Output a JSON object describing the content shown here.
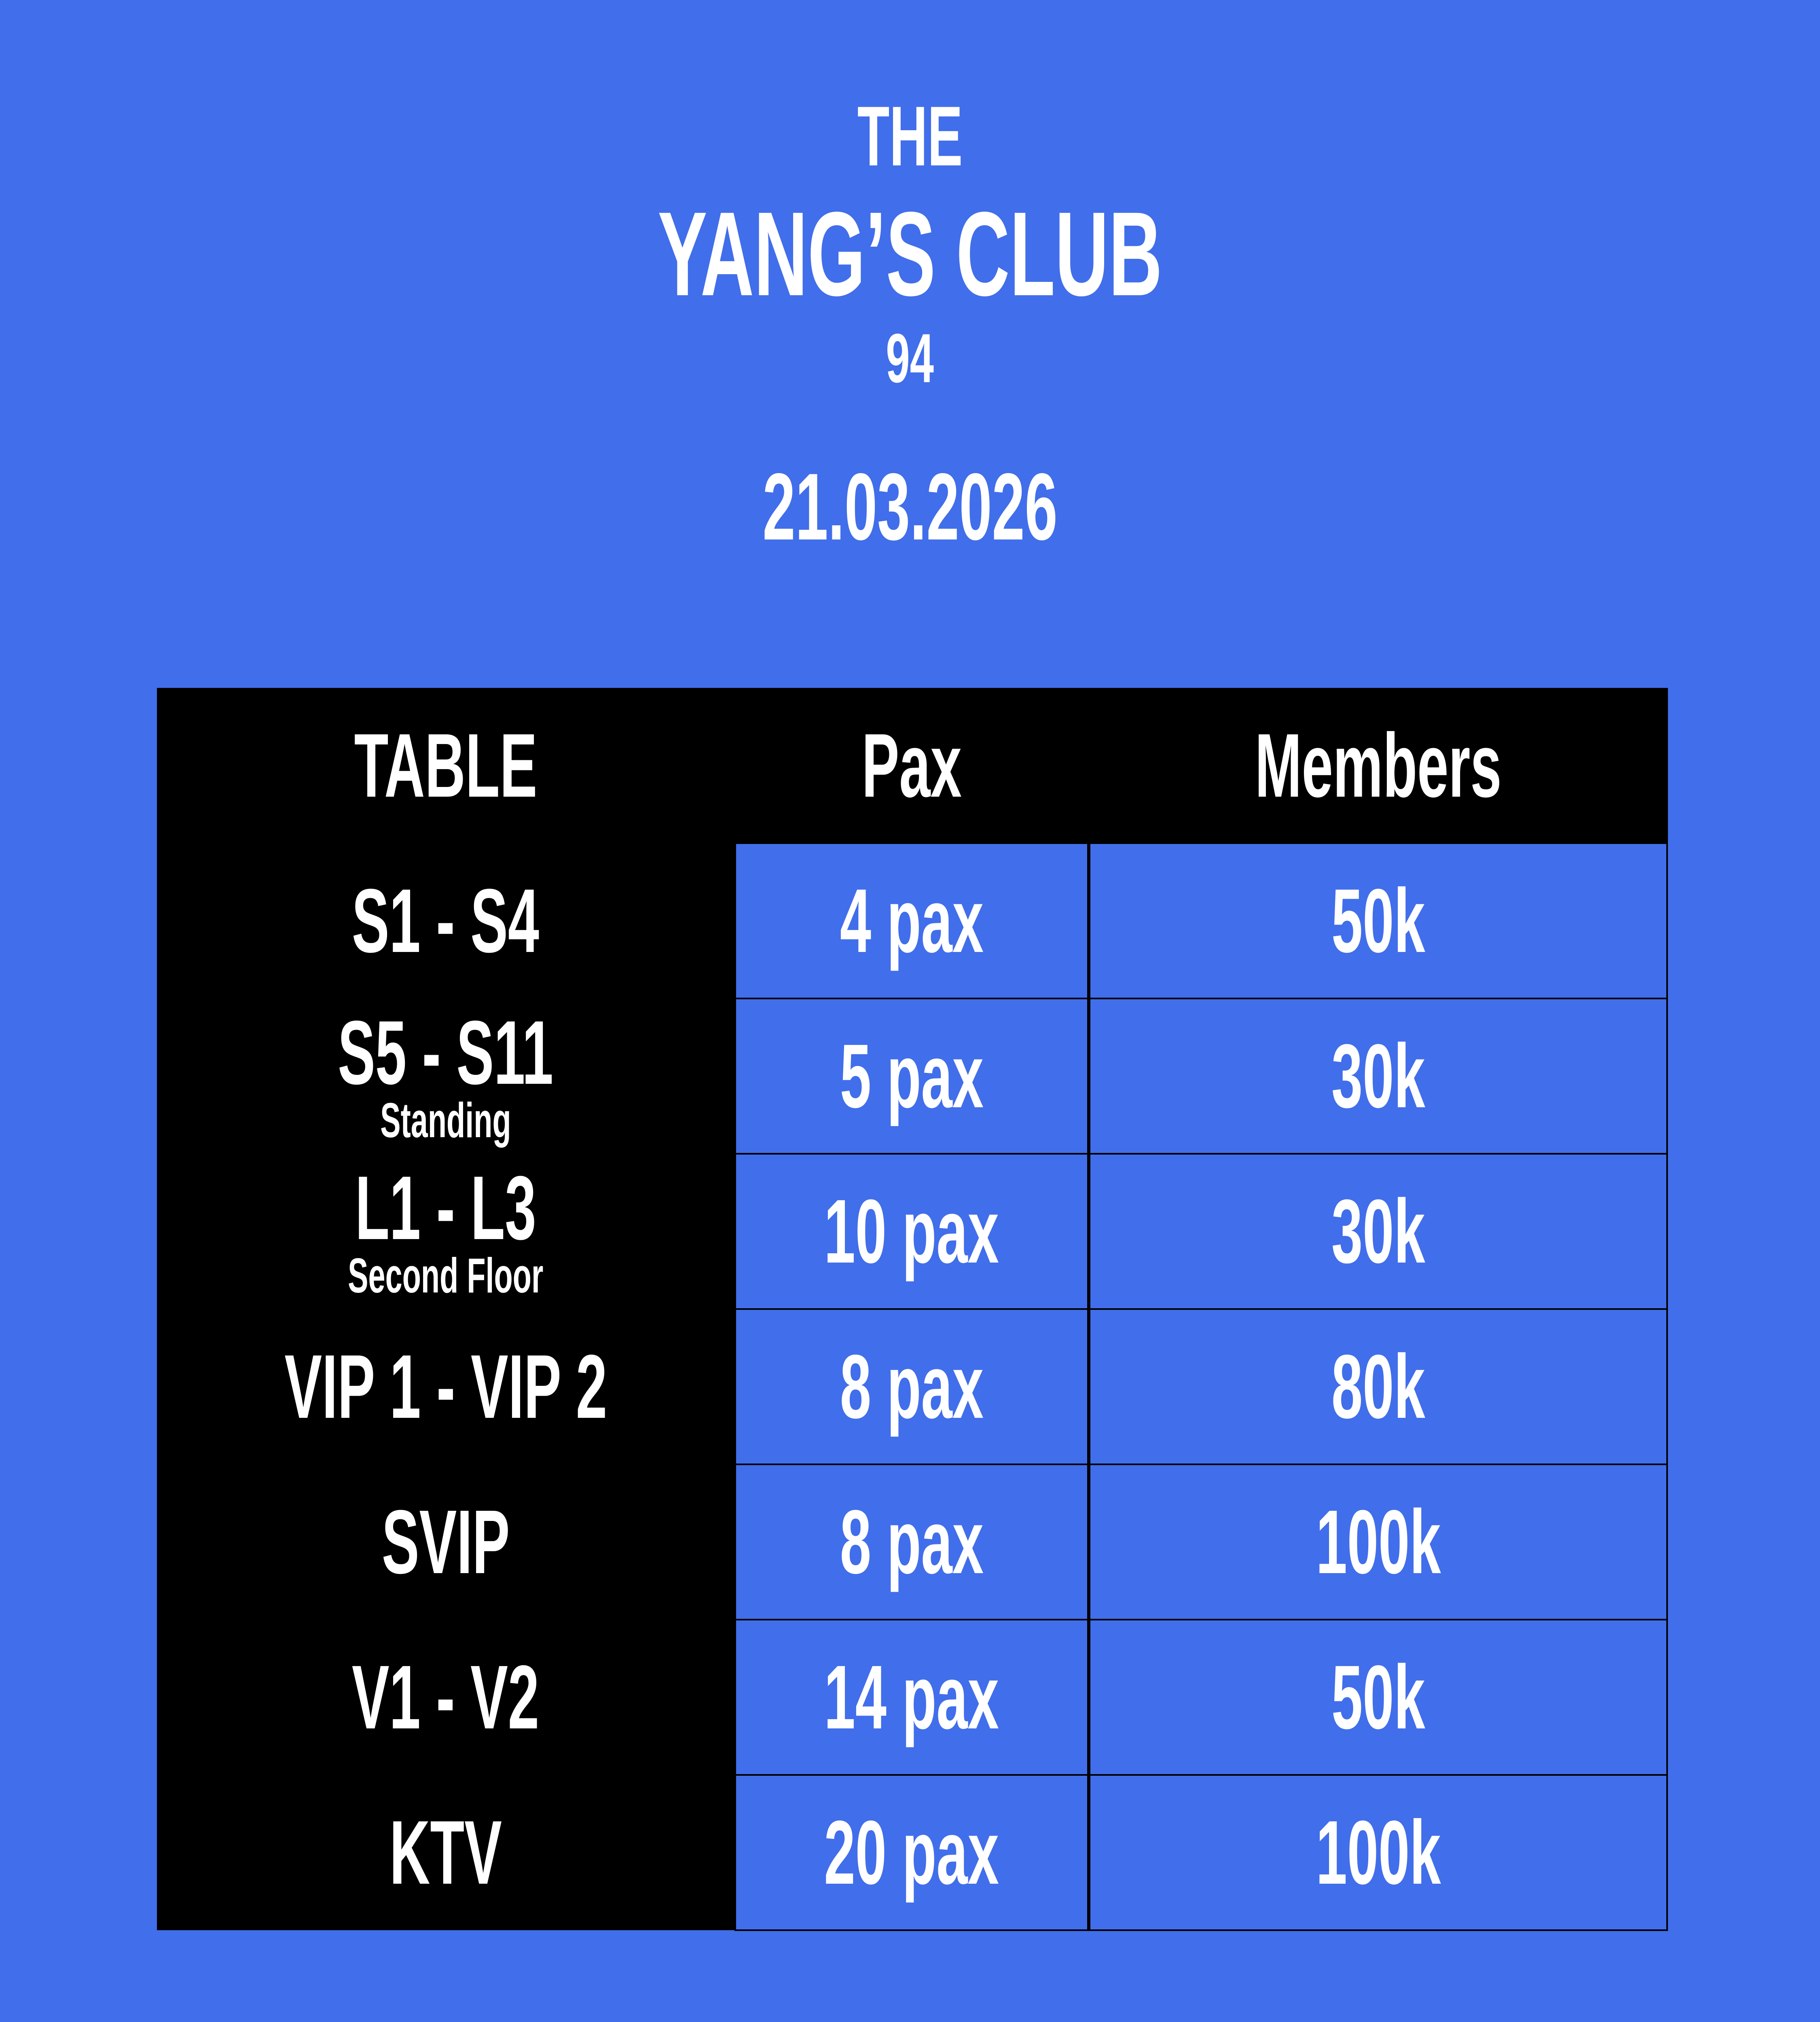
{
  "header": {
    "prefix": "THE",
    "title": "YANG’S CLUB",
    "number": "94",
    "date": "21.03.2026"
  },
  "colors": {
    "background": "#416EEA",
    "header_bg": "#000000",
    "text": "#FFFFFF"
  },
  "table": {
    "columns": [
      "TABLE",
      "Pax",
      "Members"
    ],
    "rows": [
      {
        "table": "S1 - S4",
        "note": "",
        "pax": "4 pax",
        "members": "50k"
      },
      {
        "table": "S5 - S11",
        "note": "Standing",
        "pax": "5 pax",
        "members": "30k"
      },
      {
        "table": "L1 - L3",
        "note": "Second Floor",
        "pax": "10 pax",
        "members": "30k"
      },
      {
        "table": "VIP 1 - VIP 2",
        "note": "",
        "pax": "8 pax",
        "members": "80k"
      },
      {
        "table": "SVIP",
        "note": "",
        "pax": "8 pax",
        "members": "100k"
      },
      {
        "table": "V1 - V2",
        "note": "",
        "pax": "14 pax",
        "members": "50k"
      },
      {
        "table": "KTV",
        "note": "",
        "pax": "20 pax",
        "members": "100k"
      }
    ]
  }
}
